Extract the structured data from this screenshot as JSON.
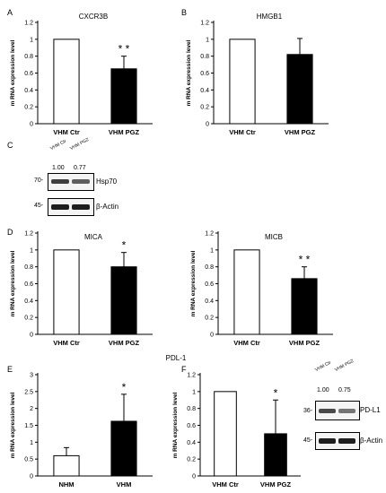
{
  "panel_letters": [
    "A",
    "B",
    "C",
    "D",
    "E",
    "F"
  ],
  "chart_data": [
    {
      "id": "A",
      "type": "bar",
      "title": "CXCR3B",
      "categories": [
        "VHM Ctr",
        "VHM PGZ"
      ],
      "values": [
        1.0,
        0.65
      ],
      "errors": [
        0,
        0.15
      ],
      "ylabel": "m RNA expression level",
      "ylim": [
        0,
        1.2
      ],
      "yticks": [
        "0",
        "0.2",
        "0.4",
        "0.6",
        "0.8",
        "1",
        "1.2"
      ],
      "annotations": [
        {
          "bar": 1,
          "text": "* *"
        }
      ]
    },
    {
      "id": "B",
      "type": "bar",
      "title": "HMGB1",
      "categories": [
        "VHM Ctr",
        "VHM PGZ"
      ],
      "values": [
        1.0,
        0.82
      ],
      "errors": [
        0,
        0.19
      ],
      "ylabel": "m RNA expression level",
      "ylim": [
        0,
        1.2
      ],
      "yticks": [
        "0",
        "0.2",
        "0.4",
        "0.6",
        "0.8",
        "1",
        "1.2"
      ],
      "annotations": []
    },
    {
      "id": "D1",
      "type": "bar",
      "title": "MICA",
      "categories": [
        "VHM Ctr",
        "VHM PGZ"
      ],
      "values": [
        1.0,
        0.8
      ],
      "errors": [
        0,
        0.17
      ],
      "ylabel": "m RNA expression level",
      "ylim": [
        0,
        1.2
      ],
      "yticks": [
        "0",
        "0.2",
        "0.4",
        "0.6",
        "0.8",
        "1",
        "1.2"
      ],
      "annotations": [
        {
          "bar": 1,
          "text": "*"
        }
      ]
    },
    {
      "id": "D2",
      "type": "bar",
      "title": "MICB",
      "categories": [
        "VHM Ctr",
        "VHM PGZ"
      ],
      "values": [
        1.0,
        0.66
      ],
      "errors": [
        0,
        0.14
      ],
      "ylabel": "m RNA expression level",
      "ylim": [
        0,
        1.2
      ],
      "yticks": [
        "0",
        "0.2",
        "0.4",
        "0.6",
        "0.8",
        "1",
        "1.2"
      ],
      "annotations": [
        {
          "bar": 1,
          "text": "* *"
        }
      ]
    },
    {
      "id": "E",
      "type": "bar",
      "title": "PDL-1",
      "categories": [
        "NHM",
        "VHM"
      ],
      "values": [
        0.6,
        1.62
      ],
      "errors": [
        0.24,
        0.8
      ],
      "ylabel": "m RNA expression level",
      "ylim": [
        0,
        3
      ],
      "yticks": [
        "0",
        "0.5",
        "1",
        "1.5",
        "2",
        "2.5",
        "3"
      ],
      "annotations": [
        {
          "bar": 1,
          "text": "*"
        }
      ]
    },
    {
      "id": "F",
      "type": "bar",
      "title": "",
      "categories": [
        "VHM Ctr",
        "VHM PGZ"
      ],
      "values": [
        1.0,
        0.5
      ],
      "errors": [
        0,
        0.4
      ],
      "ylabel": "m RNA expression level",
      "ylim": [
        0,
        1.2
      ],
      "yticks": [
        "0",
        "0.2",
        "0.4",
        "0.6",
        "0.8",
        "1",
        "1.2"
      ],
      "annotations": [
        {
          "bar": 1,
          "text": "*"
        }
      ]
    }
  ],
  "blots": {
    "C": {
      "lanes": [
        "VHM Ctr",
        "VHM PGZ"
      ],
      "ratios": [
        "1.00",
        "0.77"
      ],
      "rows": [
        {
          "mw": "70-",
          "protein": "Hsp70",
          "intensity": [
            0.85,
            0.7
          ]
        },
        {
          "mw": "45-",
          "protein": "β-Actin",
          "intensity": [
            1.0,
            1.0
          ]
        }
      ]
    },
    "F": {
      "lanes": [
        "VHM Ctr",
        "VHM PGZ"
      ],
      "ratios": [
        "1.00",
        "0.75"
      ],
      "rows": [
        {
          "mw": "36-",
          "protein": "PD-L1",
          "intensity": [
            0.8,
            0.6
          ]
        },
        {
          "mw": "45-",
          "protein": "β-Actin",
          "intensity": [
            1.0,
            1.0
          ]
        }
      ]
    }
  }
}
